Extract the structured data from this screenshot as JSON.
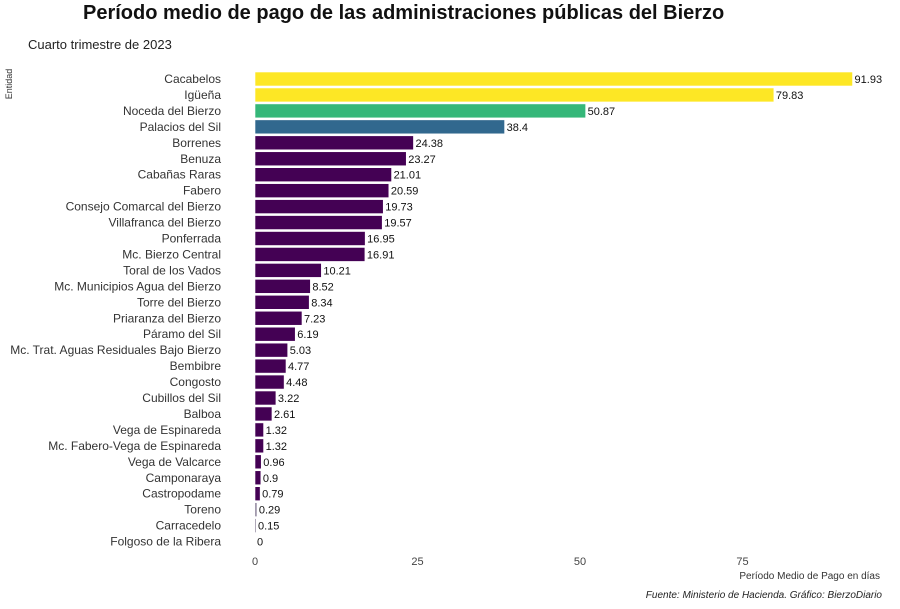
{
  "title": "Período medio de pago de las administraciones públicas del Bierzo",
  "subtitle": "Cuarto trimestre de 2023",
  "caption": "Fuente: Ministerio de Hacienda. Gráfico: BierzoDiario",
  "chart_data": {
    "type": "bar",
    "orientation": "horizontal",
    "ylabel": "Entidad",
    "xlabel": "Período Medio de Pago en días",
    "xticks": [
      0,
      25,
      50,
      75
    ],
    "xlim": [
      0,
      92
    ],
    "grid": false,
    "categories": [
      "Cacabelos",
      "Igüeña",
      "Noceda del Bierzo",
      "Palacios del Sil",
      "Borrenes",
      "Benuza",
      "Cabañas Raras",
      "Fabero",
      "Consejo Comarcal del Bierzo",
      "Villafranca del Bierzo",
      "Ponferrada",
      "Mc. Bierzo Central",
      "Toral de los Vados",
      "Mc. Municipios Agua del Bierzo",
      "Torre del Bierzo",
      "Priaranza del Bierzo",
      "Páramo del Sil",
      "Mc. Trat. Aguas Residuales Bajo Bierzo",
      "Bembibre",
      "Congosto",
      "Cubillos del Sil",
      "Balboa",
      "Vega de Espinareda",
      "Mc. Fabero-Vega de Espinareda",
      "Vega de Valcarce",
      "Camponaraya",
      "Castropodame",
      "Toreno",
      "Carracedelo",
      "Folgoso de la Ribera"
    ],
    "values": [
      91.93,
      79.83,
      50.87,
      38.4,
      24.38,
      23.27,
      21.01,
      20.59,
      19.73,
      19.57,
      16.95,
      16.91,
      10.21,
      8.52,
      8.34,
      7.23,
      6.19,
      5.03,
      4.77,
      4.48,
      3.22,
      2.61,
      1.32,
      1.32,
      0.96,
      0.9,
      0.79,
      0.29,
      0.15,
      0
    ],
    "value_labels": [
      "91.93",
      "79.83",
      "50.87",
      "38.4",
      "24.38",
      "23.27",
      "21.01",
      "20.59",
      "19.73",
      "19.57",
      "16.95",
      "16.91",
      "10.21",
      "8.52",
      "8.34",
      "7.23",
      "6.19",
      "5.03",
      "4.77",
      "4.48",
      "3.22",
      "2.61",
      "1.32",
      "1.32",
      "0.96",
      "0.9",
      "0.79",
      "0.29",
      "0.15",
      "0"
    ],
    "color_scale": "viridis",
    "colors": {
      "high": "#fde725",
      "mid_high": "#35b779",
      "mid": "#31688e",
      "low": "#440154"
    }
  }
}
